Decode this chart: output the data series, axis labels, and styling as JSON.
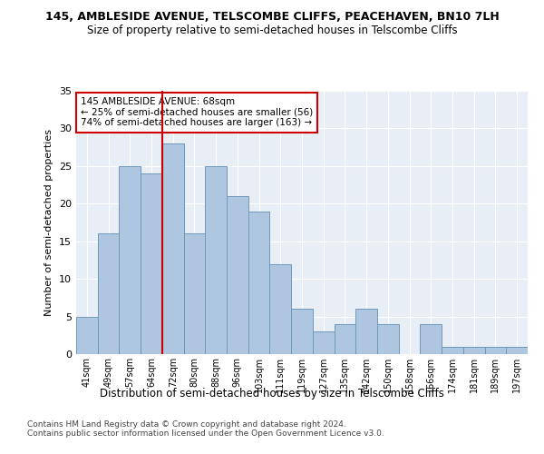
{
  "title1": "145, AMBLESIDE AVENUE, TELSCOMBE CLIFFS, PEACEHAVEN, BN10 7LH",
  "title2": "Size of property relative to semi-detached houses in Telscombe Cliffs",
  "xlabel": "Distribution of semi-detached houses by size in Telscombe Cliffs",
  "ylabel": "Number of semi-detached properties",
  "footer1": "Contains HM Land Registry data © Crown copyright and database right 2024.",
  "footer2": "Contains public sector information licensed under the Open Government Licence v3.0.",
  "categories": [
    "41sqm",
    "49sqm",
    "57sqm",
    "64sqm",
    "72sqm",
    "80sqm",
    "88sqm",
    "96sqm",
    "103sqm",
    "111sqm",
    "119sqm",
    "127sqm",
    "135sqm",
    "142sqm",
    "150sqm",
    "158sqm",
    "166sqm",
    "174sqm",
    "181sqm",
    "189sqm",
    "197sqm"
  ],
  "values": [
    5,
    16,
    25,
    24,
    28,
    16,
    25,
    21,
    19,
    12,
    6,
    3,
    4,
    6,
    4,
    0,
    4,
    1,
    1,
    1,
    1
  ],
  "bar_color": "#aec6df",
  "bar_edge_color": "#7099bb",
  "background_color": "#e8eef5",
  "red_line_index": 4,
  "red_line_color": "#cc0000",
  "annotation_text": "145 AMBLESIDE AVENUE: 68sqm\n← 25% of semi-detached houses are smaller (56)\n74% of semi-detached houses are larger (163) →",
  "annotation_box_color": "white",
  "annotation_box_edge": "#cc0000",
  "ylim": [
    0,
    35
  ],
  "yticks": [
    0,
    5,
    10,
    15,
    20,
    25,
    30,
    35
  ]
}
